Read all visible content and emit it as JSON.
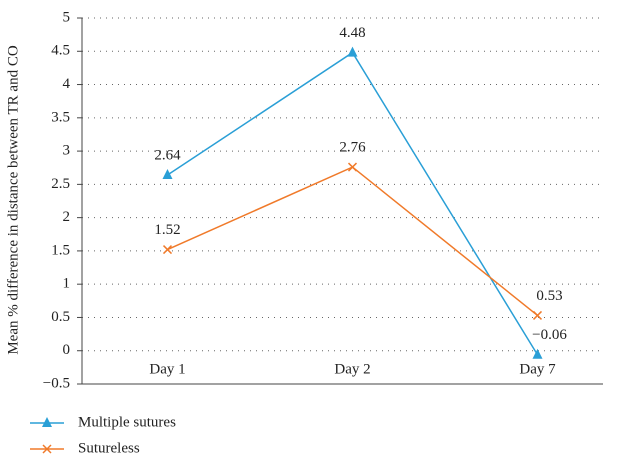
{
  "chart_data": {
    "type": "line",
    "y_label": "Mean % difference in distance between TR and CO",
    "categories": [
      "Day 1",
      "Day 2",
      "Day 7"
    ],
    "series": [
      {
        "name": "Multiple sutures",
        "color": "#2a9fd6",
        "marker": "triangle",
        "values": [
          2.64,
          4.48,
          -0.06
        ],
        "value_labels": [
          "2.64",
          "4.48",
          "−0.06"
        ]
      },
      {
        "name": "Sutureless",
        "color": "#f07a2a",
        "marker": "x",
        "values": [
          1.52,
          2.76,
          0.53
        ],
        "value_labels": [
          "1.52",
          "2.76",
          "0.53"
        ]
      }
    ],
    "ylim": [
      -0.5,
      5
    ],
    "yticks": [
      {
        "value": -0.5,
        "label": "−0.5"
      },
      0,
      0.5,
      1,
      1.5,
      2,
      2.5,
      3,
      3.5,
      4,
      4.5,
      5
    ],
    "grid": true,
    "legend": "bottom"
  }
}
